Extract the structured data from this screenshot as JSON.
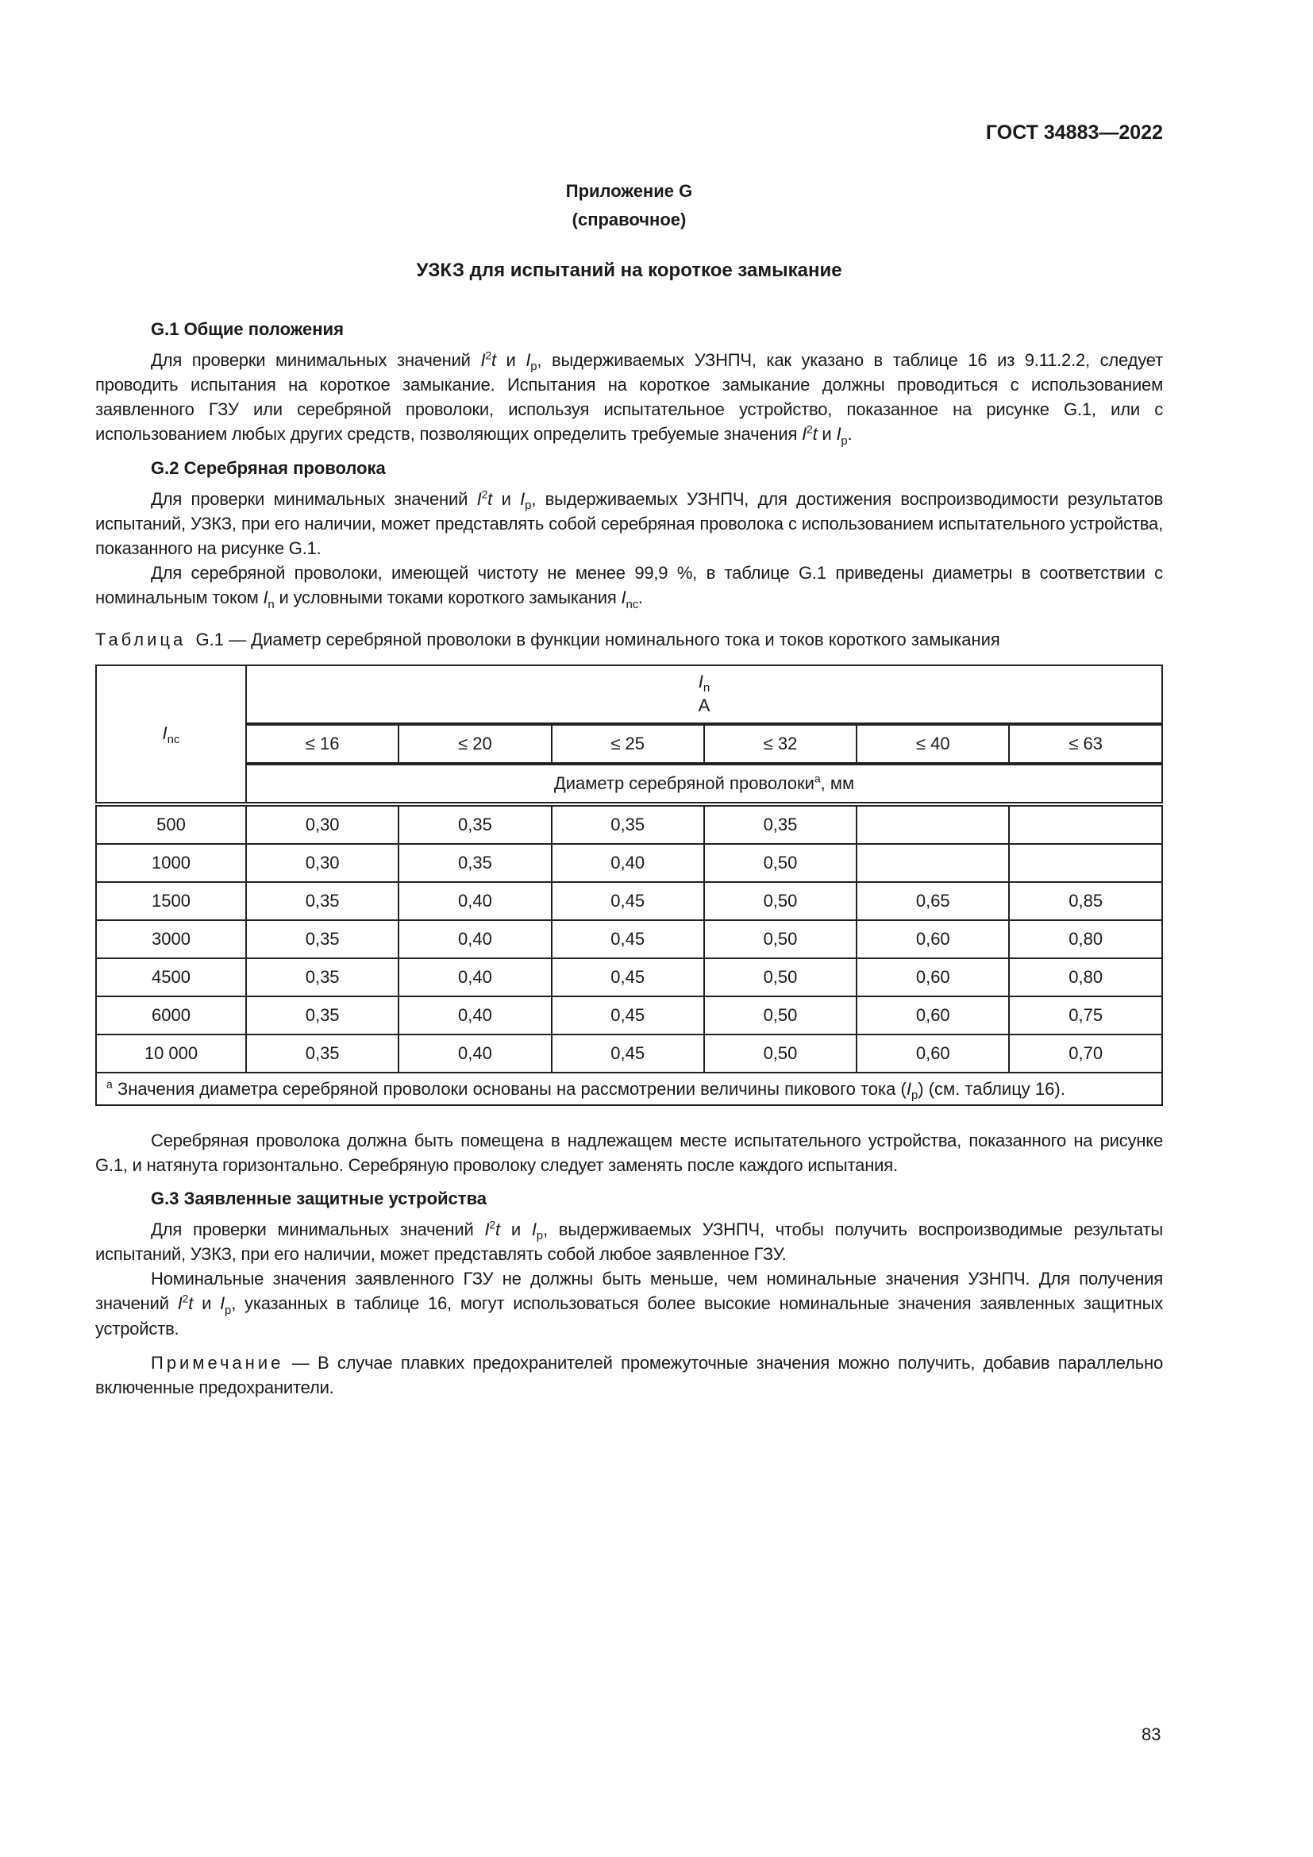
{
  "header": {
    "doc_code": "ГОСТ 34883—2022"
  },
  "appendix": {
    "label": "Приложение G",
    "type": "(справочное)",
    "title": "УЗКЗ для испытаний на короткое замыкание"
  },
  "sections": [
    {
      "heading": "G.1  Общие положения",
      "paragraphs": [
        [
          [
            "Для проверки минимальных значений ",
            ""
          ],
          [
            "I",
            "i"
          ],
          [
            "2",
            "sup"
          ],
          [
            "t",
            "i"
          ],
          [
            " и ",
            ""
          ],
          [
            "I",
            "i"
          ],
          [
            "p",
            "sub"
          ],
          [
            ", выдерживаемых УЗНПЧ, как указано в таблице 16 из 9.11.2.2, следует проводить испытания на короткое замыкание. Испытания на короткое замыкание должны проводиться с использованием заявленного ГЗУ или серебряной проволоки, используя испытательное устройство, показанное на рисунке G.1, или с использованием любых других средств, позволяющих определить требуемые значения ",
            ""
          ],
          [
            "I",
            "i"
          ],
          [
            "2",
            "sup"
          ],
          [
            "t",
            "i"
          ],
          [
            " и ",
            ""
          ],
          [
            "I",
            "i"
          ],
          [
            "p",
            "sub"
          ],
          [
            ".",
            ""
          ]
        ]
      ]
    },
    {
      "heading": "G.2  Серебряная проволока",
      "paragraphs": [
        [
          [
            "Для проверки минимальных значений ",
            ""
          ],
          [
            "I",
            "i"
          ],
          [
            "2",
            "sup"
          ],
          [
            "t",
            "i"
          ],
          [
            " и ",
            ""
          ],
          [
            "I",
            "i"
          ],
          [
            "p",
            "sub"
          ],
          [
            ", выдерживаемых УЗНПЧ, для достижения воспроизводимости результатов испытаний, УЗКЗ, при его наличии, может представлять собой серебряная проволока с использованием испытательного устройства, показанного на рисунке G.1.",
            ""
          ]
        ],
        [
          [
            "Для серебряной проволоки, имеющей чистоту не менее 99,9 %, в таблице G.1 приведены диаметры в соответствии с номинальным током ",
            ""
          ],
          [
            "I",
            "i"
          ],
          [
            "n",
            "sub"
          ],
          [
            " и условными токами короткого замыкания ",
            ""
          ],
          [
            "I",
            "i"
          ],
          [
            "nc",
            "sub"
          ],
          [
            ".",
            ""
          ]
        ]
      ]
    }
  ],
  "table": {
    "caption_label": "Таблица",
    "caption_text": "G.1 — Диаметр серебряной проволоки в функции номинального тока и токов короткого замыкания",
    "row_header": {
      "symbol": "I",
      "sub": "nc"
    },
    "col_group": {
      "symbol": "I",
      "sub": "n",
      "unit": "A"
    },
    "columns": [
      "≤ 16",
      "≤ 20",
      "≤ 25",
      "≤ 32",
      "≤ 40",
      "≤ 63"
    ],
    "subheader": {
      "text": "Диаметр серебряной проволоки",
      "sup": "a",
      "unit": ", мм"
    },
    "rows": [
      {
        "inc": "500",
        "values": [
          "0,30",
          "0,35",
          "0,35",
          "0,35",
          "",
          ""
        ]
      },
      {
        "inc": "1000",
        "values": [
          "0,30",
          "0,35",
          "0,40",
          "0,50",
          "",
          ""
        ]
      },
      {
        "inc": "1500",
        "values": [
          "0,35",
          "0,40",
          "0,45",
          "0,50",
          "0,65",
          "0,85"
        ]
      },
      {
        "inc": "3000",
        "values": [
          "0,35",
          "0,40",
          "0,45",
          "0,50",
          "0,60",
          "0,80"
        ]
      },
      {
        "inc": "4500",
        "values": [
          "0,35",
          "0,40",
          "0,45",
          "0,50",
          "0,60",
          "0,80"
        ]
      },
      {
        "inc": "6000",
        "values": [
          "0,35",
          "0,40",
          "0,45",
          "0,50",
          "0,60",
          "0,75"
        ]
      },
      {
        "inc": "10 000",
        "values": [
          "0,35",
          "0,40",
          "0,45",
          "0,50",
          "0,60",
          "0,70"
        ]
      }
    ],
    "footnote": [
      [
        "a",
        "sup"
      ],
      [
        " Значения диаметра серебряной проволоки основаны на рассмотрении величины пикового тока (",
        ""
      ],
      [
        "I",
        "i"
      ],
      [
        "p",
        "sub"
      ],
      [
        ") (см. таблицу 16).",
        ""
      ]
    ]
  },
  "after_table": [
    [
      [
        "Серебряная проволока должна быть помещена в надлежащем месте испытательного устройства, показанного на рисунке G.1, и натянута горизонтально. Серебряную проволоку следует заменять после каждого испытания.",
        ""
      ]
    ]
  ],
  "section3": {
    "heading": "G.3  Заявленные защитные устройства",
    "paragraphs": [
      [
        [
          "Для проверки минимальных значений ",
          ""
        ],
        [
          "I",
          "i"
        ],
        [
          "2",
          "sup"
        ],
        [
          "t",
          "i"
        ],
        [
          " и ",
          ""
        ],
        [
          "I",
          "i"
        ],
        [
          "p",
          "sub"
        ],
        [
          ", выдерживаемых УЗНПЧ, чтобы получить воспроизводимые результаты испытаний, УЗКЗ, при его наличии, может представлять собой любое заявленное ГЗУ.",
          ""
        ]
      ],
      [
        [
          "Номинальные значения заявленного ГЗУ не должны быть меньше, чем номинальные значения УЗНПЧ. Для получения значений ",
          ""
        ],
        [
          "I",
          "i"
        ],
        [
          "2",
          "sup"
        ],
        [
          "t",
          "i"
        ],
        [
          " и ",
          ""
        ],
        [
          "I",
          "i"
        ],
        [
          "p",
          "sub"
        ],
        [
          ", указанных в таблице 16, могут использоваться более высокие номинальные значения заявленных защитных устройств.",
          ""
        ]
      ]
    ]
  },
  "note": {
    "label": "Примечание",
    "text": " — В случае плавких предохранителей промежуточные значения можно получить, добавив параллельно включенные предохранители."
  },
  "page_number": "83"
}
